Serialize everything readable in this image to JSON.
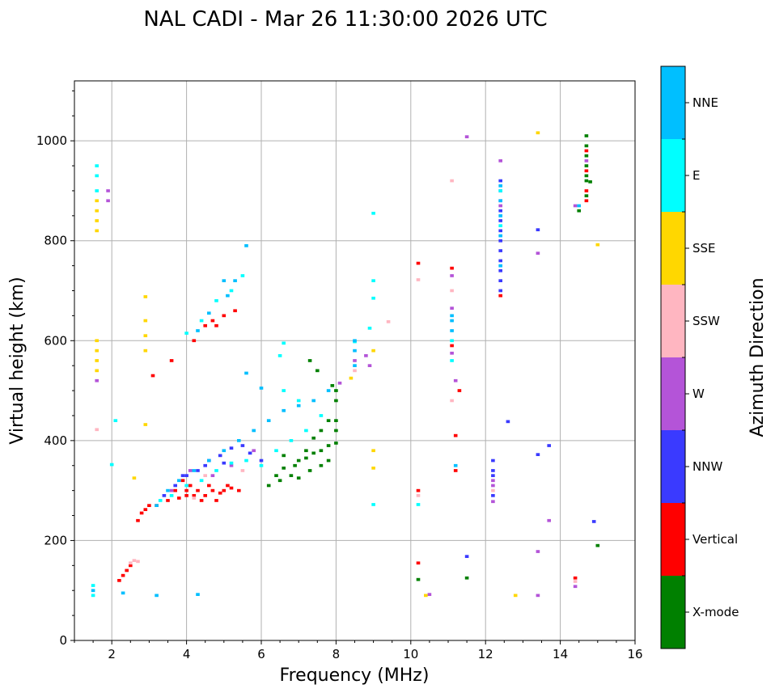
{
  "chart_data": {
    "type": "scatter",
    "title": "NAL CADI - Mar 26 11:30:00 2026 UTC",
    "xlabel": "Frequency (MHz)",
    "ylabel": "Virtual height (km)",
    "xlim": [
      1,
      16
    ],
    "ylim": [
      0,
      1120
    ],
    "xticks": [
      2,
      4,
      6,
      8,
      10,
      12,
      14,
      16
    ],
    "yticks": [
      0,
      200,
      400,
      600,
      800,
      1000
    ],
    "grid": true,
    "colorbar": {
      "title": "Azimuth Direction",
      "categories": [
        {
          "name": "X-mode",
          "color": "#008000"
        },
        {
          "name": "Vertical",
          "color": "#ff0000"
        },
        {
          "name": "NNW",
          "color": "#3a3aff"
        },
        {
          "name": "W",
          "color": "#b454d8"
        },
        {
          "name": "SSW",
          "color": "#ffb6c1"
        },
        {
          "name": "SSE",
          "color": "#ffd700"
        },
        {
          "name": "E",
          "color": "#00ffff"
        },
        {
          "name": "NNE",
          "color": "#00bfff"
        }
      ]
    },
    "series": [
      {
        "name": "X-mode",
        "points": [
          [
            6.2,
            310
          ],
          [
            6.4,
            330
          ],
          [
            6.6,
            345
          ],
          [
            6.8,
            330
          ],
          [
            7.0,
            360
          ],
          [
            7.2,
            365
          ],
          [
            7.4,
            375
          ],
          [
            7.6,
            380
          ],
          [
            7.8,
            390
          ],
          [
            8.0,
            395
          ],
          [
            8.0,
            420
          ],
          [
            8.0,
            480
          ],
          [
            7.8,
            440
          ],
          [
            7.6,
            420
          ],
          [
            7.4,
            405
          ],
          [
            7.2,
            380
          ],
          [
            6.9,
            350
          ],
          [
            6.6,
            370
          ],
          [
            6.5,
            320
          ],
          [
            7.0,
            325
          ],
          [
            7.3,
            340
          ],
          [
            7.6,
            350
          ],
          [
            7.8,
            360
          ],
          [
            8.0,
            440
          ],
          [
            8.0,
            500
          ],
          [
            7.9,
            510
          ],
          [
            7.5,
            540
          ],
          [
            7.3,
            560
          ],
          [
            14.7,
            1010
          ],
          [
            14.7,
            990
          ],
          [
            14.7,
            970
          ],
          [
            14.7,
            950
          ],
          [
            14.7,
            930
          ],
          [
            14.7,
            920
          ],
          [
            14.8,
            918
          ],
          [
            14.7,
            890
          ],
          [
            14.5,
            860
          ],
          [
            11.5,
            125
          ],
          [
            15.0,
            190
          ],
          [
            10.2,
            122
          ]
        ]
      },
      {
        "name": "Vertical",
        "points": [
          [
            2.7,
            240
          ],
          [
            2.8,
            255
          ],
          [
            2.9,
            262
          ],
          [
            3.0,
            270
          ],
          [
            3.2,
            270
          ],
          [
            3.5,
            280
          ],
          [
            3.8,
            285
          ],
          [
            4.0,
            290
          ],
          [
            4.0,
            300
          ],
          [
            4.2,
            290
          ],
          [
            4.3,
            300
          ],
          [
            4.5,
            290
          ],
          [
            4.7,
            300
          ],
          [
            4.9,
            295
          ],
          [
            5.0,
            300
          ],
          [
            5.2,
            305
          ],
          [
            5.4,
            300
          ],
          [
            3.7,
            300
          ],
          [
            3.9,
            320
          ],
          [
            4.1,
            310
          ],
          [
            4.4,
            280
          ],
          [
            4.6,
            310
          ],
          [
            4.8,
            280
          ],
          [
            5.1,
            310
          ],
          [
            4.2,
            600
          ],
          [
            4.5,
            630
          ],
          [
            4.7,
            640
          ],
          [
            5.0,
            650
          ],
          [
            5.3,
            660
          ],
          [
            4.8,
            630
          ],
          [
            2.2,
            120
          ],
          [
            2.3,
            130
          ],
          [
            2.4,
            140
          ],
          [
            2.5,
            150
          ],
          [
            12.4,
            690
          ],
          [
            11.2,
            410
          ],
          [
            11.2,
            340
          ],
          [
            11.3,
            500
          ],
          [
            11.1,
            590
          ],
          [
            11.1,
            745
          ],
          [
            10.2,
            300
          ],
          [
            10.2,
            755
          ],
          [
            10.2,
            155
          ],
          [
            14.7,
            880
          ],
          [
            14.7,
            900
          ],
          [
            14.7,
            940
          ],
          [
            14.7,
            980
          ],
          [
            14.4,
            125
          ],
          [
            3.1,
            530
          ],
          [
            3.6,
            560
          ]
        ]
      },
      {
        "name": "NNW",
        "points": [
          [
            3.4,
            290
          ],
          [
            3.7,
            310
          ],
          [
            4.0,
            330
          ],
          [
            4.3,
            340
          ],
          [
            4.6,
            360
          ],
          [
            4.9,
            370
          ],
          [
            5.2,
            385
          ],
          [
            5.5,
            390
          ],
          [
            5.7,
            375
          ],
          [
            6.0,
            360
          ],
          [
            3.9,
            330
          ],
          [
            4.5,
            350
          ],
          [
            5.0,
            355
          ],
          [
            12.4,
            700
          ],
          [
            12.4,
            720
          ],
          [
            12.4,
            740
          ],
          [
            12.4,
            760
          ],
          [
            12.4,
            780
          ],
          [
            12.4,
            800
          ],
          [
            12.4,
            820
          ],
          [
            12.4,
            840
          ],
          [
            12.4,
            860
          ],
          [
            12.4,
            880
          ],
          [
            12.4,
            900
          ],
          [
            12.4,
            920
          ],
          [
            12.2,
            360
          ],
          [
            12.2,
            340
          ],
          [
            12.2,
            330
          ],
          [
            12.2,
            290
          ],
          [
            12.6,
            438
          ],
          [
            13.4,
            822
          ],
          [
            13.7,
            390
          ],
          [
            13.4,
            372
          ],
          [
            14.9,
            238
          ],
          [
            11.5,
            168
          ]
        ]
      },
      {
        "name": "W",
        "points": [
          [
            3.6,
            300
          ],
          [
            4.1,
            340
          ],
          [
            4.7,
            330
          ],
          [
            5.2,
            350
          ],
          [
            5.8,
            380
          ],
          [
            8.1,
            515
          ],
          [
            8.5,
            560
          ],
          [
            8.9,
            550
          ],
          [
            8.8,
            570
          ],
          [
            11.1,
            575
          ],
          [
            11.1,
            665
          ],
          [
            11.1,
            730
          ],
          [
            11.2,
            520
          ],
          [
            12.2,
            320
          ],
          [
            12.2,
            310
          ],
          [
            12.2,
            278
          ],
          [
            12.4,
            960
          ],
          [
            12.4,
            870
          ],
          [
            13.4,
            775
          ],
          [
            13.4,
            178
          ],
          [
            13.4,
            90
          ],
          [
            13.7,
            240
          ],
          [
            14.4,
            870
          ],
          [
            14.4,
            108
          ],
          [
            14.7,
            960
          ],
          [
            11.5,
            1008
          ],
          [
            10.5,
            92
          ],
          [
            1.9,
            900
          ],
          [
            1.9,
            880
          ],
          [
            1.6,
            520
          ]
        ]
      },
      {
        "name": "SSW",
        "points": [
          [
            2.5,
            155
          ],
          [
            2.6,
            160
          ],
          [
            2.7,
            158
          ],
          [
            4.2,
            285
          ],
          [
            4.5,
            330
          ],
          [
            5.5,
            340
          ],
          [
            8.5,
            540
          ],
          [
            9.4,
            638
          ],
          [
            11.1,
            920
          ],
          [
            11.1,
            700
          ],
          [
            11.1,
            480
          ],
          [
            10.2,
            722
          ],
          [
            10.2,
            290
          ],
          [
            12.2,
            300
          ],
          [
            14.4,
            118
          ],
          [
            1.6,
            422
          ]
        ]
      },
      {
        "name": "SSE",
        "points": [
          [
            1.6,
            540
          ],
          [
            1.6,
            560
          ],
          [
            1.6,
            580
          ],
          [
            1.6,
            600
          ],
          [
            1.6,
            820
          ],
          [
            1.6,
            840
          ],
          [
            1.6,
            860
          ],
          [
            1.6,
            880
          ],
          [
            2.9,
            580
          ],
          [
            2.9,
            610
          ],
          [
            2.9,
            640
          ],
          [
            2.9,
            688
          ],
          [
            2.9,
            432
          ],
          [
            9.0,
            380
          ],
          [
            9.0,
            345
          ],
          [
            9.0,
            580
          ],
          [
            8.4,
            525
          ],
          [
            10.4,
            90
          ],
          [
            12.8,
            90
          ],
          [
            13.4,
            1016
          ],
          [
            15.0,
            792
          ],
          [
            2.6,
            325
          ]
        ]
      },
      {
        "name": "E",
        "points": [
          [
            3.3,
            280
          ],
          [
            3.6,
            290
          ],
          [
            4.0,
            310
          ],
          [
            4.4,
            320
          ],
          [
            4.8,
            340
          ],
          [
            5.2,
            355
          ],
          [
            5.6,
            360
          ],
          [
            6.0,
            350
          ],
          [
            6.4,
            380
          ],
          [
            6.8,
            400
          ],
          [
            7.2,
            420
          ],
          [
            7.6,
            450
          ],
          [
            7.0,
            480
          ],
          [
            6.6,
            500
          ],
          [
            4.0,
            615
          ],
          [
            4.4,
            640
          ],
          [
            4.8,
            680
          ],
          [
            5.2,
            700
          ],
          [
            5.5,
            730
          ],
          [
            1.6,
            950
          ],
          [
            1.6,
            930
          ],
          [
            1.6,
            900
          ],
          [
            9.0,
            720
          ],
          [
            9.0,
            685
          ],
          [
            9.0,
            855
          ],
          [
            9.0,
            272
          ],
          [
            8.9,
            625
          ],
          [
            8.5,
            598
          ],
          [
            6.5,
            570
          ],
          [
            6.6,
            595
          ],
          [
            10.2,
            272
          ],
          [
            11.1,
            560
          ],
          [
            11.1,
            600
          ],
          [
            12.4,
            830
          ],
          [
            12.4,
            900
          ],
          [
            1.5,
            110
          ],
          [
            1.5,
            90
          ],
          [
            2.0,
            352
          ],
          [
            2.1,
            440
          ]
        ]
      },
      {
        "name": "NNE",
        "points": [
          [
            3.2,
            270
          ],
          [
            3.5,
            300
          ],
          [
            3.8,
            320
          ],
          [
            4.2,
            340
          ],
          [
            4.6,
            360
          ],
          [
            5.0,
            380
          ],
          [
            5.4,
            400
          ],
          [
            5.8,
            420
          ],
          [
            6.2,
            440
          ],
          [
            6.6,
            460
          ],
          [
            7.0,
            470
          ],
          [
            7.4,
            480
          ],
          [
            7.8,
            500
          ],
          [
            5.1,
            690
          ],
          [
            5.3,
            720
          ],
          [
            5.0,
            720
          ],
          [
            4.6,
            655
          ],
          [
            4.3,
            620
          ],
          [
            8.5,
            550
          ],
          [
            8.5,
            580
          ],
          [
            8.5,
            600
          ],
          [
            11.1,
            640
          ],
          [
            11.1,
            620
          ],
          [
            11.1,
            650
          ],
          [
            11.2,
            350
          ],
          [
            12.4,
            750
          ],
          [
            12.4,
            810
          ],
          [
            12.4,
            850
          ],
          [
            12.4,
            880
          ],
          [
            12.4,
            910
          ],
          [
            14.5,
            870
          ],
          [
            1.5,
            100
          ],
          [
            4.3,
            92
          ],
          [
            3.2,
            90
          ],
          [
            2.3,
            95
          ],
          [
            5.6,
            535
          ],
          [
            5.6,
            790
          ],
          [
            6.0,
            505
          ]
        ]
      }
    ]
  }
}
